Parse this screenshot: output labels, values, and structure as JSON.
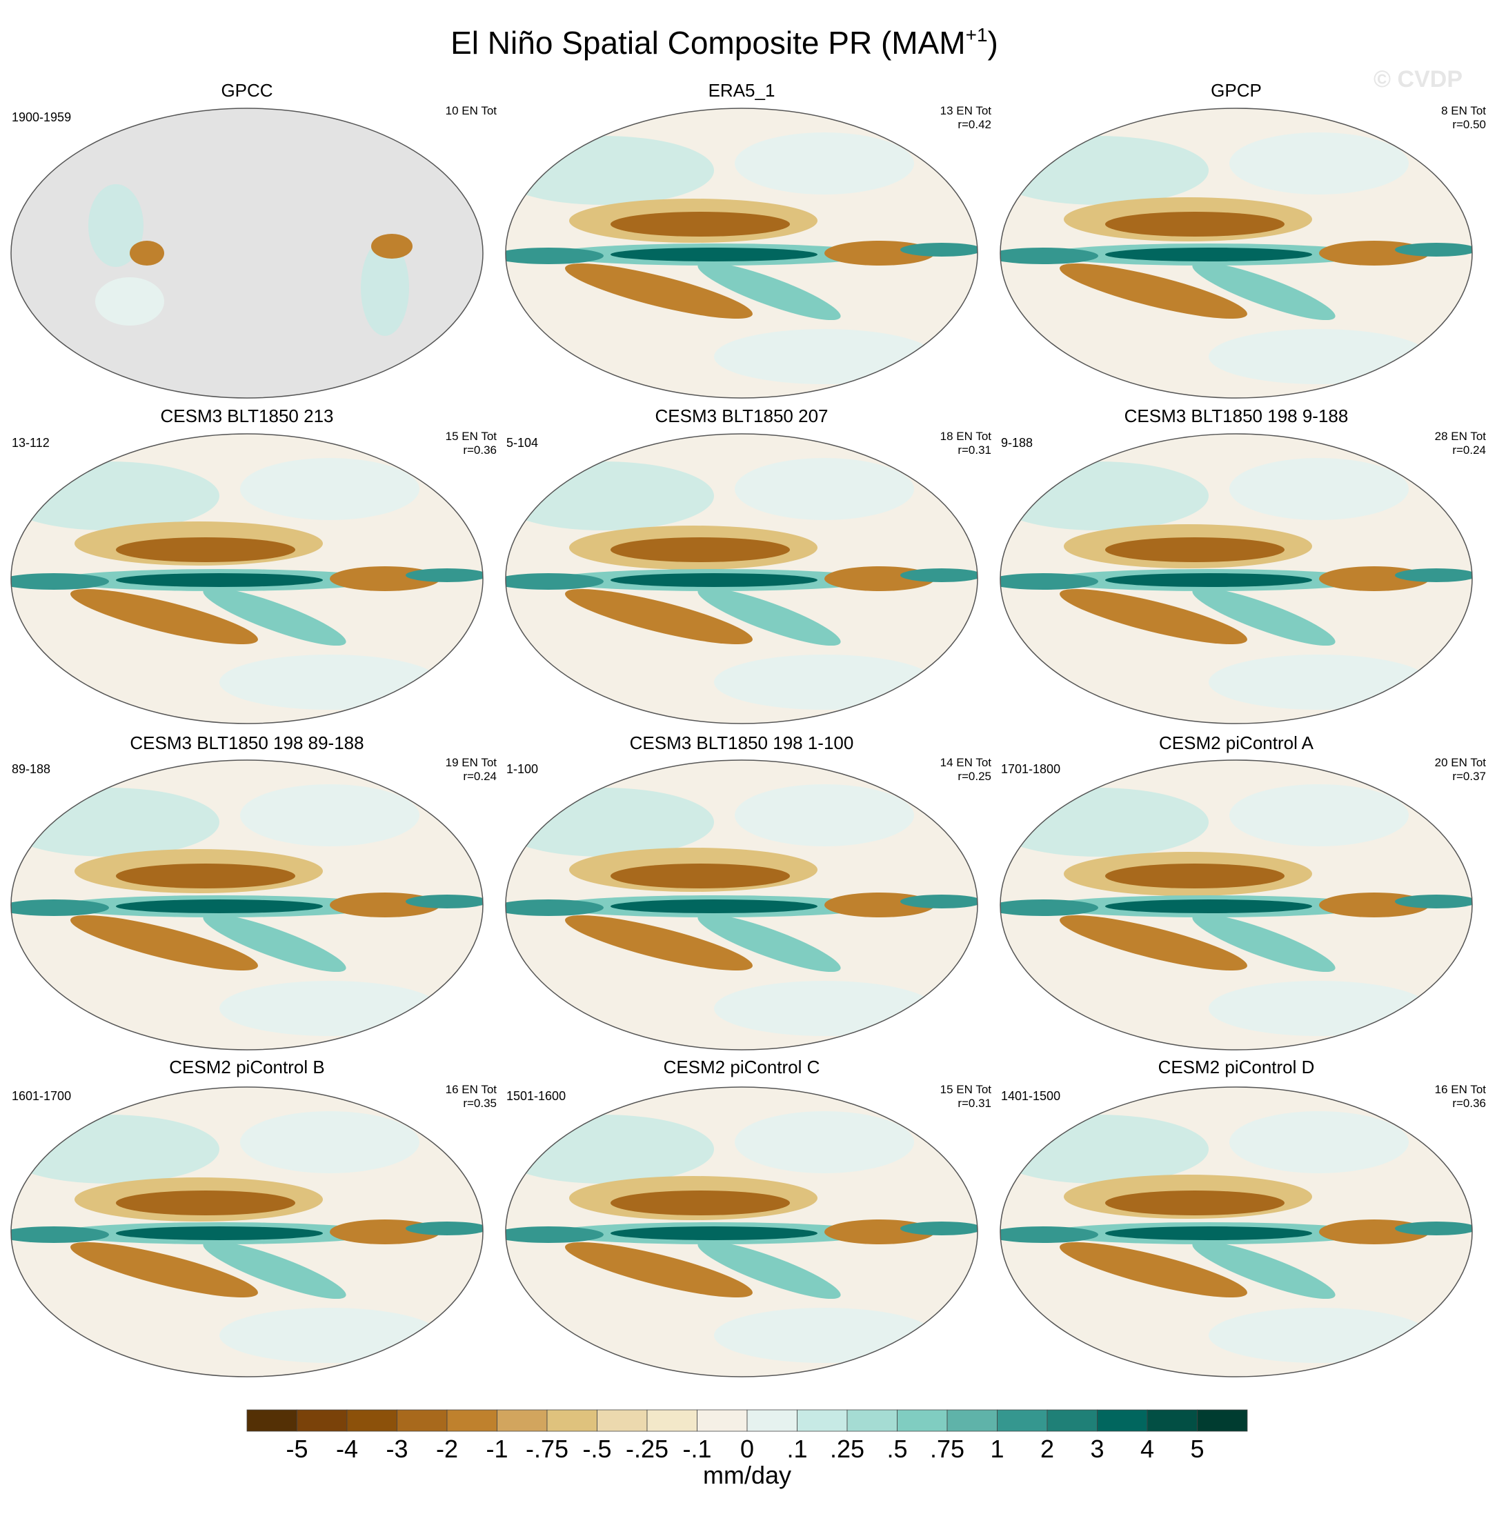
{
  "header": {
    "title": "El Niño Spatial Composite PR (MAM",
    "title_sup": "+1",
    "title_end": ")",
    "watermark": "© CVDP"
  },
  "panels": [
    {
      "title": "GPCC",
      "left": "1900-1959",
      "right": [
        "10 EN Tot"
      ]
    },
    {
      "title": "ERA5_1",
      "right": [
        "13 EN Tot",
        "r=0.42"
      ]
    },
    {
      "title": "GPCP",
      "right": [
        "8 EN Tot",
        "r=0.50"
      ]
    },
    {
      "title": "CESM3 BLT1850 213",
      "left": "13-112",
      "right": [
        "15 EN Tot",
        "r=0.36"
      ]
    },
    {
      "title": "CESM3 BLT1850 207",
      "left": "5-104",
      "right": [
        "18 EN Tot",
        "r=0.31"
      ]
    },
    {
      "title": "CESM3 BLT1850 198 9-188",
      "left": "9-188",
      "right": [
        "28 EN Tot",
        "r=0.24"
      ]
    },
    {
      "title": "CESM3 BLT1850 198 89-188",
      "left": "89-188",
      "right": [
        "19 EN Tot",
        "r=0.24"
      ]
    },
    {
      "title": "CESM3 BLT1850 198 1-100",
      "left": "1-100",
      "right": [
        "14 EN Tot",
        "r=0.25"
      ]
    },
    {
      "title": "CESM2 piControl A",
      "left": "1701-1800",
      "right": [
        "20 EN Tot",
        "r=0.37"
      ]
    },
    {
      "title": "CESM2 piControl B",
      "left": "1601-1700",
      "right": [
        "16 EN Tot",
        "r=0.35"
      ]
    },
    {
      "title": "CESM2 piControl C",
      "left": "1501-1600",
      "right": [
        "15 EN Tot",
        "r=0.31"
      ]
    },
    {
      "title": "CESM2 piControl D",
      "left": "1401-1500",
      "right": [
        "16 EN Tot",
        "r=0.36"
      ]
    }
  ],
  "colorbar": {
    "colors": [
      "#543005",
      "#7a4209",
      "#8c510a",
      "#a8691c",
      "#bf812d",
      "#d2a55e",
      "#dfc27d",
      "#ecd9ae",
      "#f3e8c9",
      "#f5f0e6",
      "#e6f2ef",
      "#c7eae5",
      "#a5dcd3",
      "#80cdc1",
      "#5fb3a9",
      "#35978f",
      "#1f8077",
      "#01665e",
      "#024f44",
      "#003c30"
    ],
    "labels": [
      "-5",
      "-4",
      "-3",
      "-2",
      "-1",
      "-.75",
      "-.5",
      "-.25",
      "-.1",
      "0",
      ".1",
      ".25",
      ".5",
      ".75",
      "1",
      "2",
      "3",
      "4",
      "5"
    ],
    "unit": "mm/day"
  }
}
